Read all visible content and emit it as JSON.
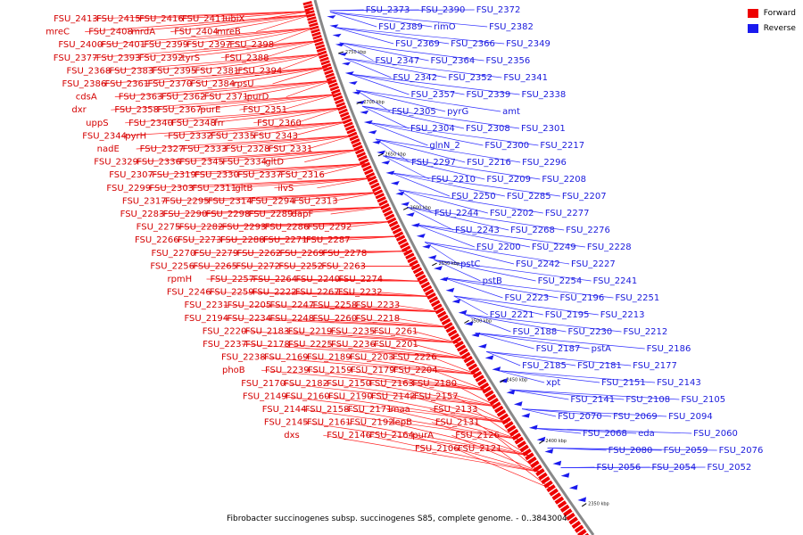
{
  "legend": {
    "forward_label": "Forward",
    "reverse_label": "Reverse",
    "forward_color": "#ee0000",
    "reverse_color": "#1a1aee"
  },
  "caption": "Fibrobacter succinogenes subsp. succinogenes S85, complete genome. - 0..3843004",
  "scale_ticks": [
    "2750 kbp",
    "2700 kbp",
    "2650 kbp",
    "2600 kbp",
    "2550 kbp",
    "2500 kbp",
    "2450 kbp",
    "2400 kbp",
    "2350 kbp"
  ],
  "forward_genes": [
    "ubiX",
    "FSU_2411",
    "FSU_2416",
    "FSU_2415",
    "FSU_2413",
    "mreB",
    "FSU_2404",
    "mrdA",
    "FSU_2408",
    "mreC",
    "FSU_2398",
    "FSU_2397",
    "FSU_2399",
    "FSU_2401",
    "FSU_2400",
    "FSU_2388",
    "tyrS",
    "FSU_2392",
    "FSU_2393",
    "FSU_2377",
    "FSU_2394",
    "FSU_2381",
    "FSU_2395",
    "FSU_2383",
    "FSU_2368",
    "rpsU",
    "FSU_2384",
    "FSU_2370",
    "FSU_2361",
    "FSU_2386",
    "purD",
    "FSU_2371",
    "FSU_2362",
    "FSU_2363",
    "cdsA",
    "FSU_2351",
    "purE",
    "FSU_2367",
    "FSU_2358",
    "dxr",
    "FSU_2360",
    "frr",
    "FSU_2348",
    "FSU_2340",
    "uppS",
    "FSU_2343",
    "FSU_2335",
    "FSU_2332",
    "pyrH",
    "FSU_2344",
    "FSU_2331",
    "FSU_2328",
    "FSU_2333",
    "FSU_2327",
    "nadE",
    "gltD",
    "FSU_2334",
    "FSU_2345",
    "FSU_2336",
    "FSU_2329",
    "FSU_2316",
    "FSU_2337",
    "FSU_2330",
    "FSU_2319",
    "FSU_2307",
    "ilvS",
    "gltB",
    "FSU_2311",
    "FSU_2303",
    "FSU_2299",
    "FSU_2313",
    "FSU_2294",
    "FSU_2314",
    "FSU_2295",
    "FSU_2317",
    "dapF",
    "FSU_2289",
    "FSU_2298",
    "FSU_2290",
    "FSU_2283",
    "FSU_2292",
    "FSU_2286",
    "FSU_2293",
    "FSU_2282",
    "FSU_2275",
    "FSU_2287",
    "FSU_2271",
    "FSU_2288",
    "FSU_2273",
    "FSU_2266",
    "FSU_2278",
    "FSU_2269",
    "FSU_2262",
    "FSU_2279",
    "FSU_2270",
    "FSU_2263",
    "FSU_2252",
    "FSU_2272",
    "FSU_2265",
    "FSU_2256",
    "FSU_2274",
    "FSU_2240",
    "FSU_2264",
    "FSU_2257",
    "rpmH",
    "FSU_2232",
    "FSU_2267",
    "FSU_2222",
    "FSU_2259",
    "FSU_2246",
    "FSU_2233",
    "FSU_2258",
    "FSU_2247",
    "FSU_2205",
    "FSU_2231",
    "FSU_2218",
    "FSU_2260",
    "FSU_2248",
    "FSU_2234",
    "FSU_2194",
    "FSU_2261",
    "FSU_2235",
    "FSU_2219",
    "FSU_2183",
    "FSU_2220",
    "FSU_2201",
    "FSU_2236",
    "FSU_2225",
    "FSU_2178",
    "FSU_2237",
    "FSU_2226",
    "FSU_2203",
    "FSU_2189",
    "FSU_2169",
    "FSU_2238",
    "FSU_2204",
    "FSU_2179",
    "FSU_2159",
    "FSU_2239",
    "phoB",
    "FSU_2180",
    "FSU_2163",
    "FSU_2150",
    "FSU_2182",
    "FSU_2170",
    "FSU_2157",
    "FSU_2142",
    "FSU_2190",
    "FSU_2160",
    "FSU_2149",
    "FSU_2133",
    "maa",
    "FSU_2171",
    "FSU_2158",
    "FSU_2144",
    "FSU_2131",
    "lepB",
    "FSU_2192",
    "FSU_2161",
    "FSU_2145",
    "FSU_2126",
    "purA",
    "FSU_2164",
    "FSU_2146",
    "dxs",
    "FSU_2121",
    "FSU_2106"
  ],
  "reverse_genes": [
    "FSU_2373",
    "FSU_2390",
    "FSU_2372",
    "FSU_2389",
    "rimO",
    "FSU_2382",
    "FSU_2369",
    "FSU_2366",
    "FSU_2349",
    "FSU_2347",
    "FSU_2364",
    "FSU_2356",
    "FSU_2342",
    "FSU_2352",
    "FSU_2341",
    "FSU_2357",
    "FSU_2339",
    "FSU_2338",
    "FSU_2305",
    "pyrG",
    "amt",
    "FSU_2304",
    "FSU_2308",
    "FSU_2301",
    "glnN_2",
    "FSU_2300",
    "FSU_2217",
    "FSU_2297",
    "FSU_2216",
    "FSU_2296",
    "FSU_2210",
    "FSU_2209",
    "FSU_2208",
    "FSU_2250",
    "FSU_2285",
    "FSU_2207",
    "FSU_2244",
    "FSU_2202",
    "FSU_2277",
    "FSU_2243",
    "FSU_2268",
    "FSU_2276",
    "FSU_2200",
    "FSU_2249",
    "FSU_2228",
    "pstC",
    "FSU_2242",
    "FSU_2227",
    "pstB",
    "FSU_2254",
    "FSU_2241",
    "FSU_2223",
    "FSU_2196",
    "FSU_2251",
    "FSU_2221",
    "FSU_2195",
    "FSU_2213",
    "FSU_2188",
    "FSU_2230",
    "FSU_2212",
    "FSU_2187",
    "pstA",
    "FSU_2186",
    "FSU_2185",
    "FSU_2181",
    "FSU_2177",
    "xpt",
    "FSU_2151",
    "FSU_2143",
    "FSU_2141",
    "FSU_2108",
    "FSU_2105",
    "FSU_2070",
    "FSU_2069",
    "FSU_2094",
    "FSU_2068",
    "eda",
    "FSU_2060",
    "FSU_2080",
    "FSU_2059",
    "FSU_2076",
    "FSU_2056",
    "FSU_2054",
    "FSU_2052"
  ]
}
